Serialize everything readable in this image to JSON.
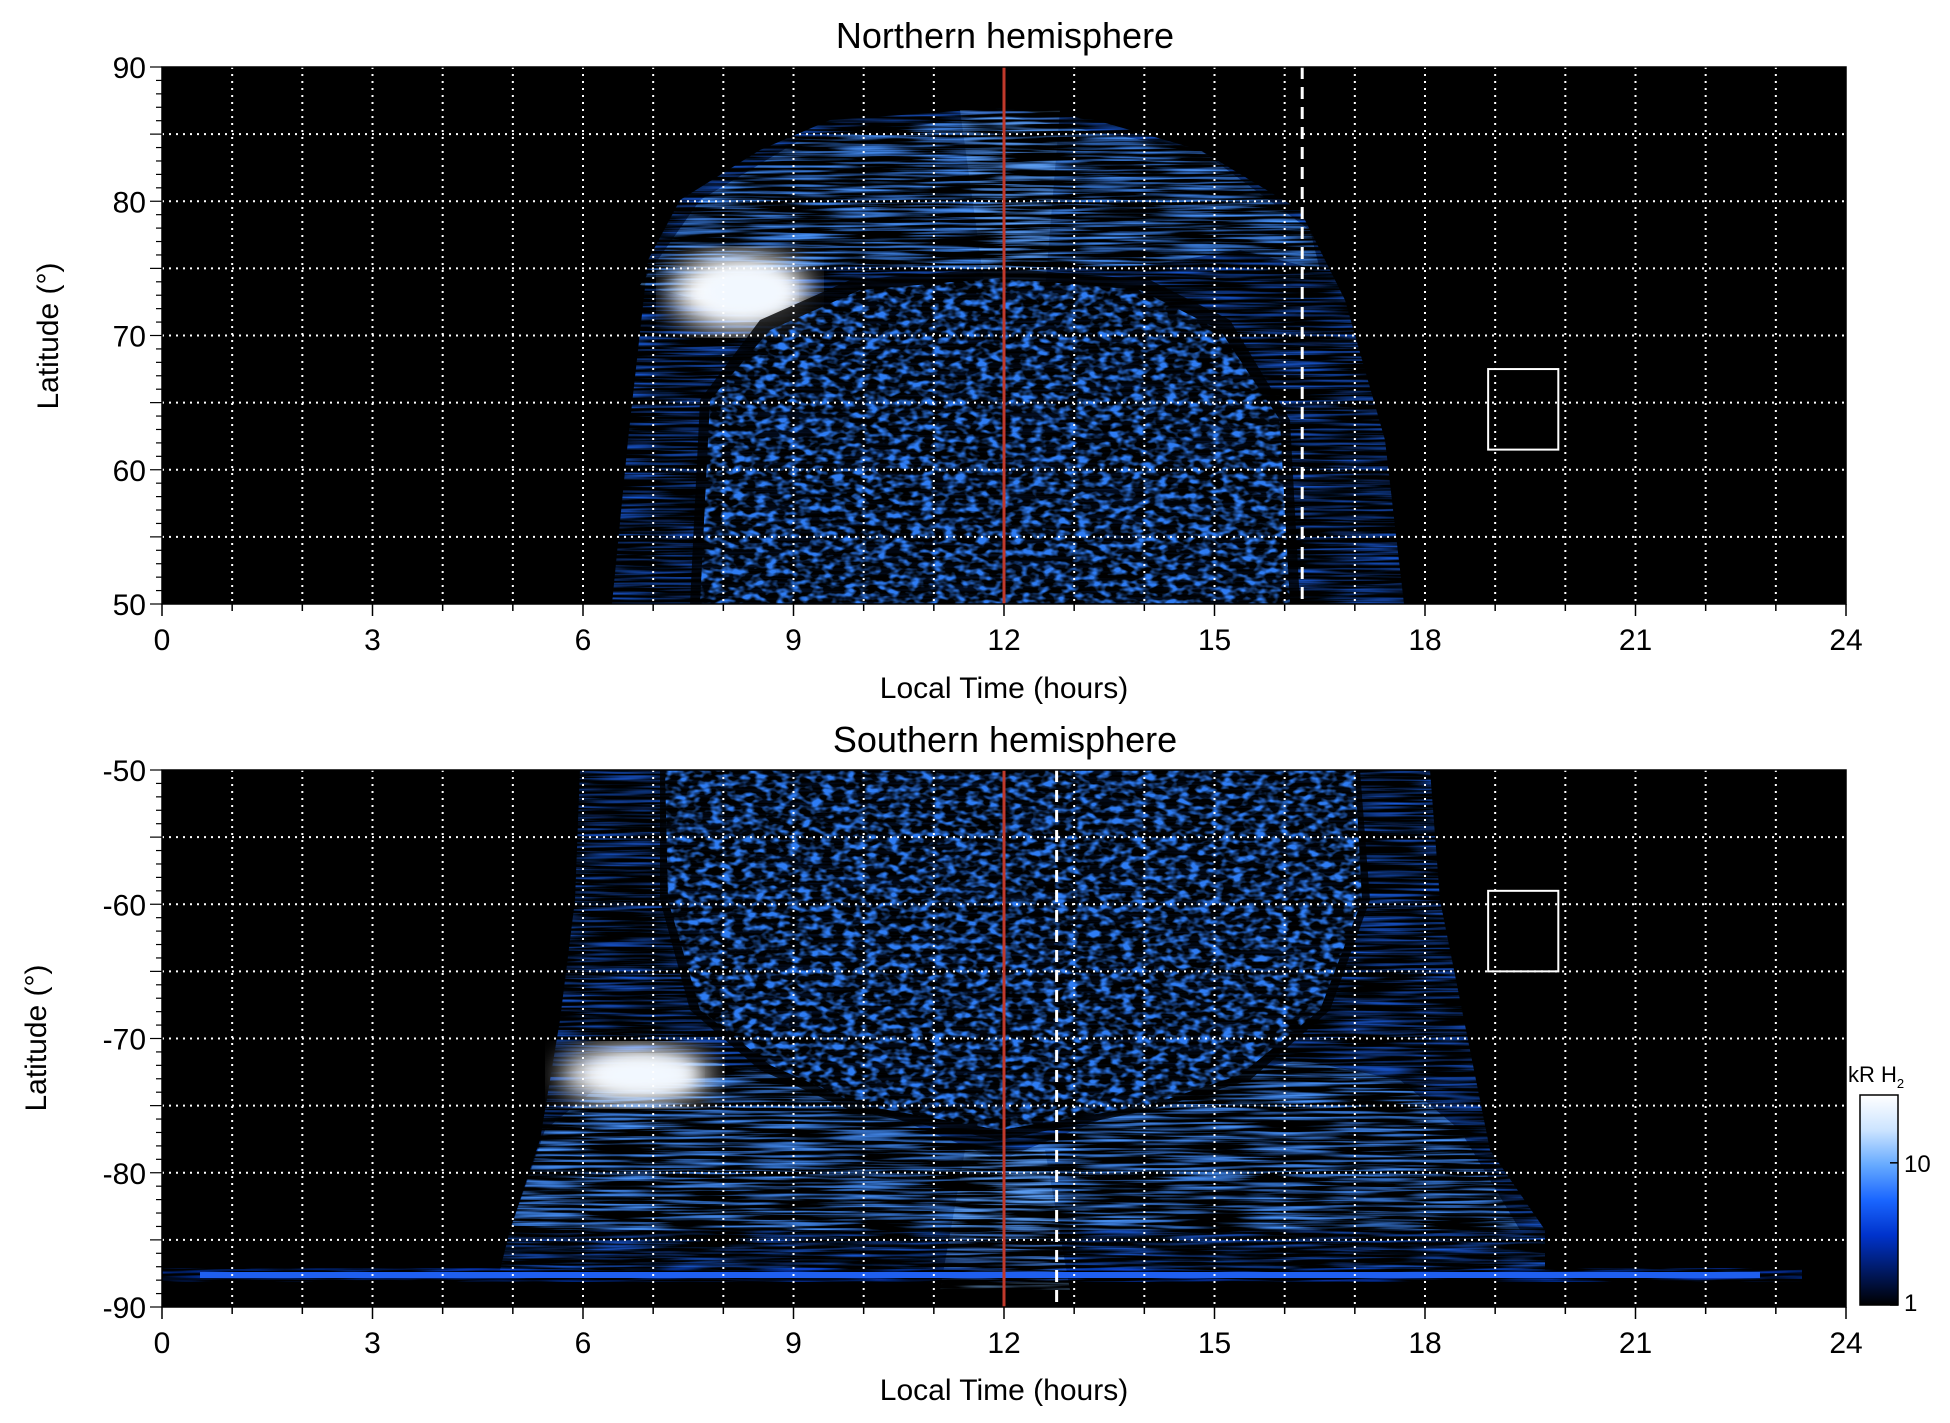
{
  "chart_data": [
    {
      "type": "heatmap",
      "title": "Northern hemisphere",
      "xlabel": "Local Time (hours)",
      "ylabel": "Latitude (°)",
      "xlim": [
        0,
        24
      ],
      "ylim": [
        50,
        90
      ],
      "xticks": [
        0,
        3,
        6,
        9,
        12,
        15,
        18,
        21,
        24
      ],
      "yticks": [
        50,
        60,
        70,
        80,
        90
      ],
      "grid": true,
      "background": "#000000",
      "regions": [
        {
          "kind": "coverage",
          "lat_range": [
            50,
            87
          ],
          "lt_range": [
            6.4,
            17.7
          ]
        },
        {
          "kind": "bright-oval",
          "lat_band": [
            73,
            86
          ],
          "lt_range": [
            7,
            17
          ],
          "peak": 20
        },
        {
          "kind": "hot-spot",
          "lt": 8.5,
          "lat": 73,
          "peak": 30
        },
        {
          "kind": "low-emission-core",
          "lat_range": [
            50,
            75
          ],
          "lt_range": [
            8.5,
            16.5
          ],
          "level": 2
        }
      ],
      "markers": [
        {
          "kind": "vertical-line",
          "x": 12,
          "color": "#c0392b",
          "style": "solid"
        },
        {
          "kind": "vertical-line",
          "x": 16.25,
          "color": "#ffffff",
          "style": "dashed"
        },
        {
          "kind": "box",
          "x": [
            18.9,
            19.9
          ],
          "y": [
            61.5,
            67.5
          ],
          "color": "#ffffff"
        }
      ]
    },
    {
      "type": "heatmap",
      "title": "Southern hemisphere",
      "xlabel": "Local Time (hours)",
      "ylabel": "Latitude (°)",
      "xlim": [
        0,
        24
      ],
      "ylim": [
        -90,
        -50
      ],
      "xticks": [
        0,
        3,
        6,
        9,
        12,
        15,
        18,
        21,
        24
      ],
      "yticks": [
        -50,
        -60,
        -70,
        -80,
        -90
      ],
      "grid": true,
      "background": "#000000",
      "regions": [
        {
          "kind": "coverage",
          "lat_range": [
            -88,
            -50
          ],
          "lt_range": [
            5,
            19
          ]
        },
        {
          "kind": "bright-oval",
          "lat_band": [
            -88,
            -72
          ],
          "lt_range": [
            5,
            19
          ],
          "peak": 20
        },
        {
          "kind": "hot-spot",
          "lt": 7.2,
          "lat": -73,
          "peak": 30
        },
        {
          "kind": "polar-band",
          "lat_range": [
            -89,
            -88
          ],
          "lt_range": [
            0,
            24
          ],
          "level": 6
        },
        {
          "kind": "low-emission-core",
          "lat_range": [
            -78,
            -50
          ],
          "lt_range": [
            7,
            17
          ],
          "level": 2
        }
      ],
      "markers": [
        {
          "kind": "vertical-line",
          "x": 12,
          "color": "#c0392b",
          "style": "solid"
        },
        {
          "kind": "vertical-line",
          "x": 12.75,
          "color": "#ffffff",
          "style": "dashed"
        },
        {
          "kind": "box",
          "x": [
            18.9,
            19.9
          ],
          "y": [
            -65,
            -59
          ],
          "color": "#ffffff"
        }
      ]
    }
  ],
  "colorbar": {
    "label": "kR H",
    "label_subscript": "2",
    "scale": "log",
    "range": [
      1,
      30
    ],
    "ticks": [
      {
        "value": 10,
        "label": "10"
      },
      {
        "value": 1,
        "label": "1"
      }
    ],
    "colors": [
      "#000000",
      "#001a66",
      "#0033cc",
      "#1a66ff",
      "#66aaff",
      "#cce4ff",
      "#ffffff"
    ]
  }
}
